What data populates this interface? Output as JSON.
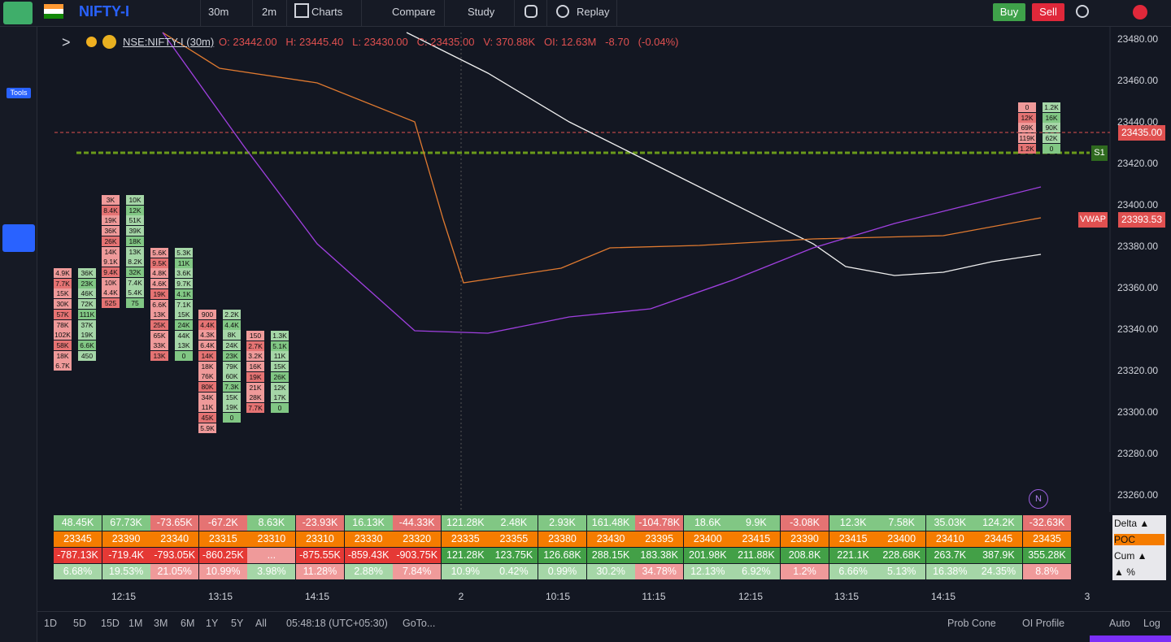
{
  "toolbar": {
    "symbol": "NIFTY-I",
    "interval": "30m",
    "interval2": "2m",
    "charts": "Charts",
    "compare": "Compare",
    "study": "Study",
    "replay": "Replay",
    "buy": "Buy",
    "sell": "Sell"
  },
  "tools_label": "Tools",
  "header": {
    "symbol": "NSE:NIFTY-I (30m)",
    "open": "O: 23442.00",
    "high": "H: 23445.40",
    "low": "L: 23430.00",
    "close": "C: 23435.00",
    "volume": "V: 370.88K",
    "oi": "OI: 12.63M",
    "change": "-8.70",
    "change_pct": "(-0.04%)"
  },
  "price_axis": [
    "23480.00",
    "23460.00",
    "23440.00",
    "23420.00",
    "23400.00",
    "23380.00",
    "23360.00",
    "23340.00",
    "23320.00",
    "23300.00",
    "23280.00",
    "23260.00"
  ],
  "price_labels": {
    "last": "23435.00",
    "vwap_name": "VWAP",
    "vwap": "23393.53",
    "s1": "S1",
    "n": "N"
  },
  "time_axis": [
    "12:15",
    "13:15",
    "14:15",
    "2",
    "10:15",
    "11:15",
    "12:15",
    "13:15",
    "14:15",
    "3"
  ],
  "footprint": [
    {
      "sell": [
        "4.9K",
        "7.7K",
        "15K",
        "30K",
        "57K",
        "78K",
        "102K",
        "58K",
        "18K",
        "6.7K"
      ],
      "buy": [
        "36K",
        "23K",
        "46K",
        "72K",
        "111K",
        "37K",
        "19K",
        "6.6K",
        "450"
      ]
    },
    {
      "sell": [
        "3K",
        "8.4K",
        "19K",
        "36K",
        "26K",
        "14K",
        "9.1K",
        "9.4K",
        "10K",
        "4.4K",
        "525"
      ],
      "buy": [
        "10K",
        "12K",
        "51K",
        "39K",
        "18K",
        "13K",
        "8.2K",
        "32K",
        "7.4K",
        "5.4K",
        "75"
      ]
    },
    {
      "sell": [
        "5.6K",
        "9.5K",
        "4.8K",
        "4.6K",
        "19K",
        "6.6K",
        "13K",
        "25K",
        "65K",
        "33K",
        "13K"
      ],
      "buy": [
        "5.3K",
        "11K",
        "3.6K",
        "9.7K",
        "4.1K",
        "7.1K",
        "15K",
        "24K",
        "44K",
        "13K",
        "0"
      ]
    },
    {
      "sell": [
        "900",
        "4.4K",
        "4.3K",
        "6.4K",
        "14K",
        "18K",
        "76K",
        "80K",
        "34K",
        "11K",
        "45K",
        "5.9K"
      ],
      "buy": [
        "2.2K",
        "4.4K",
        "8K",
        "24K",
        "23K",
        "79K",
        "60K",
        "7.3K",
        "15K",
        "19K",
        "0"
      ]
    },
    {
      "sell": [
        "150",
        "2.7K",
        "3.2K",
        "16K",
        "19K",
        "21K",
        "28K",
        "7.7K"
      ],
      "buy": [
        "1.3K",
        "5.1K",
        "11K",
        "15K",
        "26K",
        "12K",
        "17K",
        "0"
      ]
    },
    {
      "sell": [
        "0",
        "12K",
        "69K",
        "119K",
        "1.2K"
      ],
      "buy": [
        "1.2K",
        "16K",
        "90K",
        "62K",
        "0"
      ]
    }
  ],
  "stats": {
    "rows": [
      [
        "48.45K",
        "67.73K",
        "-73.65K",
        "-67.2K",
        "8.63K",
        "-23.93K",
        "16.13K",
        "-44.33K",
        "121.28K",
        "2.48K",
        "2.93K",
        "161.48K",
        "-104.78K",
        "18.6K",
        "9.9K",
        "-3.08K",
        "12.3K",
        "7.58K",
        "35.03K",
        "124.2K",
        "-32.63K"
      ],
      [
        "23345",
        "23390",
        "23340",
        "23315",
        "23310",
        "23310",
        "23330",
        "23320",
        "23335",
        "23355",
        "23380",
        "23430",
        "23395",
        "23400",
        "23415",
        "23390",
        "23415",
        "23400",
        "23410",
        "23445",
        "23435"
      ],
      [
        "-787.13K",
        "-719.4K",
        "-793.05K",
        "-860.25K",
        "...",
        "-875.55K",
        "-859.43K",
        "-903.75K",
        "121.28K",
        "123.75K",
        "126.68K",
        "288.15K",
        "183.38K",
        "201.98K",
        "211.88K",
        "208.8K",
        "221.1K",
        "228.68K",
        "263.7K",
        "387.9K",
        "355.28K"
      ],
      [
        "6.68%",
        "19.53%",
        "21.05%",
        "10.99%",
        "3.98%",
        "11.28%",
        "2.88%",
        "7.84%",
        "10.9%",
        "0.42%",
        "0.99%",
        "30.2%",
        "34.78%",
        "12.13%",
        "6.92%",
        "1.2%",
        "6.66%",
        "5.13%",
        "16.38%",
        "24.35%",
        "8.8%"
      ]
    ],
    "legend": [
      "Delta ▲",
      "POC",
      "Cum ▲",
      "▲ %"
    ]
  },
  "bottom_bar": {
    "ranges": [
      "1D",
      "5D",
      "15D",
      "1M",
      "3M",
      "6M",
      "1Y",
      "5Y",
      "All"
    ],
    "clock": "05:48:18 (UTC+05:30)",
    "goto": "GoTo...",
    "prob_cone": "Prob Cone",
    "oi_profile": "OI Profile",
    "auto": "Auto",
    "log": "Log"
  }
}
